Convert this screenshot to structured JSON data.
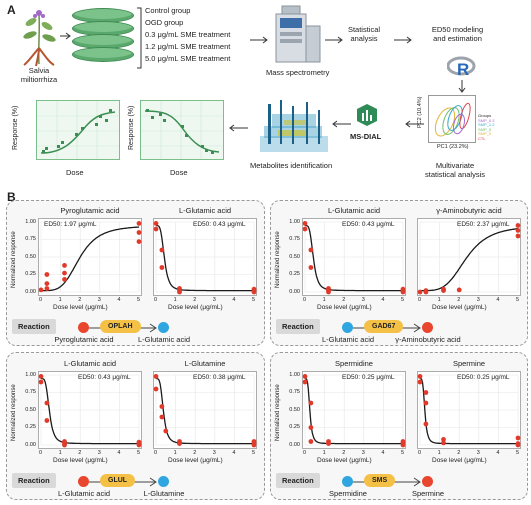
{
  "panels": {
    "a_label": "A",
    "b_label": "B"
  },
  "workflow": {
    "plant_name": "Salvia\nmiltiorrhiza",
    "groups": [
      "Control group",
      "OGD group",
      "0.3 μg/mL SME treatment",
      "1.2 μg/mL SME treatment",
      "5.0 μg/mL SME treatment"
    ],
    "mass_spec": "Mass spectrometry",
    "stat_analysis": "Statistical\nanalysis",
    "ed50_modeling": "ED50 modeling\nand estimation",
    "multivariate": "Multivariate\nstatistical analysis",
    "ms_dial": "MS-DIAL",
    "metabolite_id": "Metabolites identification",
    "dose_label": "Dose",
    "response_label": "Response (%)",
    "pca_x": "PC1 (23.2%)",
    "pca_y": "PC2 (10.4%)",
    "pca_groups_title": "Groups",
    "pca_groups": [
      "SMP_0.3",
      "SMP_1.2",
      "SMP_5",
      "SMP_0",
      "CTL"
    ]
  },
  "plot_common": {
    "xlabel": "Dose level (μg/mL)",
    "ylabel": "Normalized response",
    "yticks": [
      "0.00",
      "0.25",
      "0.50",
      "0.75",
      "1.00"
    ],
    "xticks": [
      "0",
      "1",
      "2",
      "3",
      "4",
      "5"
    ],
    "reaction_label": "Reaction"
  },
  "blocks": [
    {
      "enzyme": "OPLAH",
      "substrate": "Pyroglutamic acid",
      "product": "L-Glutamic acid",
      "substrate_color": "red",
      "product_color": "blue"
    },
    {
      "enzyme": "GAD67",
      "substrate": "L-Glutamic acid",
      "product": "γ-Aminobutyric acid",
      "substrate_color": "blue",
      "product_color": "red"
    },
    {
      "enzyme": "GLUL",
      "substrate": "L-Glutamic acid",
      "product": "L-Glutamine",
      "substrate_color": "red",
      "product_color": "blue"
    },
    {
      "enzyme": "SMS",
      "substrate": "Spermidine",
      "product": "Spermine",
      "substrate_color": "blue",
      "product_color": "red"
    }
  ],
  "chart_data": [
    {
      "type": "scatter",
      "title": "Pyroglutamic acid",
      "annotation": "ED50: 1.97 μg/mL",
      "curve": "increasing",
      "ed50": 1.97,
      "xlim": [
        0,
        5
      ],
      "ylim": [
        0,
        1
      ],
      "points": [
        [
          0,
          0.03
        ],
        [
          0.3,
          0.05
        ],
        [
          0.3,
          0.12
        ],
        [
          0.3,
          0.25
        ],
        [
          1.2,
          0.27
        ],
        [
          1.2,
          0.38
        ],
        [
          1.2,
          0.18
        ],
        [
          5,
          0.85
        ],
        [
          5,
          0.72
        ],
        [
          5,
          0.98
        ]
      ]
    },
    {
      "type": "scatter",
      "title": "L-Glutamic acid",
      "annotation": "ED50: 0.43 μg/mL",
      "curve": "decreasing",
      "ed50": 0.43,
      "xlim": [
        0,
        5
      ],
      "ylim": [
        0,
        1
      ],
      "points": [
        [
          0,
          0.98
        ],
        [
          0,
          0.9
        ],
        [
          0.3,
          0.6
        ],
        [
          0.3,
          0.35
        ],
        [
          1.2,
          0.02
        ],
        [
          1.2,
          0.05
        ],
        [
          1.2,
          0.0
        ],
        [
          5,
          0.02
        ],
        [
          5,
          0.0
        ],
        [
          5,
          0.04
        ]
      ]
    },
    {
      "type": "scatter",
      "title": "L-Glutamic acid",
      "annotation": "ED50: 0.43 μg/mL",
      "curve": "decreasing",
      "ed50": 0.43,
      "xlim": [
        0,
        5
      ],
      "ylim": [
        0,
        1
      ],
      "points": [
        [
          0,
          0.98
        ],
        [
          0,
          0.9
        ],
        [
          0.3,
          0.6
        ],
        [
          0.3,
          0.35
        ],
        [
          1.2,
          0.02
        ],
        [
          1.2,
          0.05
        ],
        [
          1.2,
          0.0
        ],
        [
          5,
          0.02
        ],
        [
          5,
          0.0
        ],
        [
          5,
          0.04
        ]
      ]
    },
    {
      "type": "scatter",
      "title": "γ-Aminobutyric acid",
      "annotation": "ED50: 2.37 μg/mL",
      "curve": "increasing",
      "ed50": 2.37,
      "xlim": [
        0,
        5
      ],
      "ylim": [
        0,
        1
      ],
      "points": [
        [
          0,
          0.0
        ],
        [
          0.3,
          0.0
        ],
        [
          0.3,
          0.02
        ],
        [
          1.2,
          0.02
        ],
        [
          1.2,
          0.04
        ],
        [
          2,
          0.03
        ],
        [
          5,
          0.88
        ],
        [
          5,
          0.8
        ],
        [
          5,
          0.95
        ]
      ]
    },
    {
      "type": "scatter",
      "title": "L-Glutamic acid",
      "annotation": "ED50: 0.43 μg/mL",
      "curve": "decreasing",
      "ed50": 0.43,
      "xlim": [
        0,
        5
      ],
      "ylim": [
        0,
        1
      ],
      "points": [
        [
          0,
          0.98
        ],
        [
          0,
          0.9
        ],
        [
          0.3,
          0.6
        ],
        [
          0.3,
          0.35
        ],
        [
          1.2,
          0.02
        ],
        [
          1.2,
          0.05
        ],
        [
          1.2,
          0.0
        ],
        [
          5,
          0.02
        ],
        [
          5,
          0.0
        ],
        [
          5,
          0.04
        ]
      ]
    },
    {
      "type": "scatter",
      "title": "L-Glutamine",
      "annotation": "ED50: 0.38 μg/mL",
      "curve": "decreasing",
      "ed50": 0.38,
      "xlim": [
        0,
        5
      ],
      "ylim": [
        0,
        1
      ],
      "points": [
        [
          0,
          0.98
        ],
        [
          0,
          0.8
        ],
        [
          0.3,
          0.55
        ],
        [
          0.3,
          0.4
        ],
        [
          0.5,
          0.2
        ],
        [
          1.2,
          0.05
        ],
        [
          1.2,
          0.02
        ],
        [
          5,
          0.0
        ],
        [
          5,
          0.03
        ],
        [
          5,
          0.05
        ]
      ]
    },
    {
      "type": "scatter",
      "title": "Spermidine",
      "annotation": "ED50: 0.25 μg/mL",
      "curve": "decreasing",
      "ed50": 0.25,
      "xlim": [
        0,
        5
      ],
      "ylim": [
        0,
        1
      ],
      "points": [
        [
          0,
          0.98
        ],
        [
          0,
          0.9
        ],
        [
          0.3,
          0.6
        ],
        [
          0.3,
          0.25
        ],
        [
          0.3,
          0.05
        ],
        [
          1.2,
          0.05
        ],
        [
          1.2,
          0.02
        ],
        [
          5,
          0.0
        ],
        [
          5,
          0.05
        ],
        [
          5,
          0.03
        ]
      ]
    },
    {
      "type": "scatter",
      "title": "Spermine",
      "annotation": "ED50: 0.25 μg/mL",
      "curve": "decreasing",
      "ed50": 0.25,
      "xlim": [
        0,
        5
      ],
      "ylim": [
        0,
        1
      ],
      "points": [
        [
          0,
          0.98
        ],
        [
          0,
          0.9
        ],
        [
          0.3,
          0.75
        ],
        [
          0.3,
          0.6
        ],
        [
          0.3,
          0.3
        ],
        [
          1.2,
          0.08
        ],
        [
          1.2,
          0.03
        ],
        [
          5,
          0.0
        ],
        [
          5,
          0.1
        ],
        [
          5,
          0.02
        ]
      ]
    }
  ]
}
